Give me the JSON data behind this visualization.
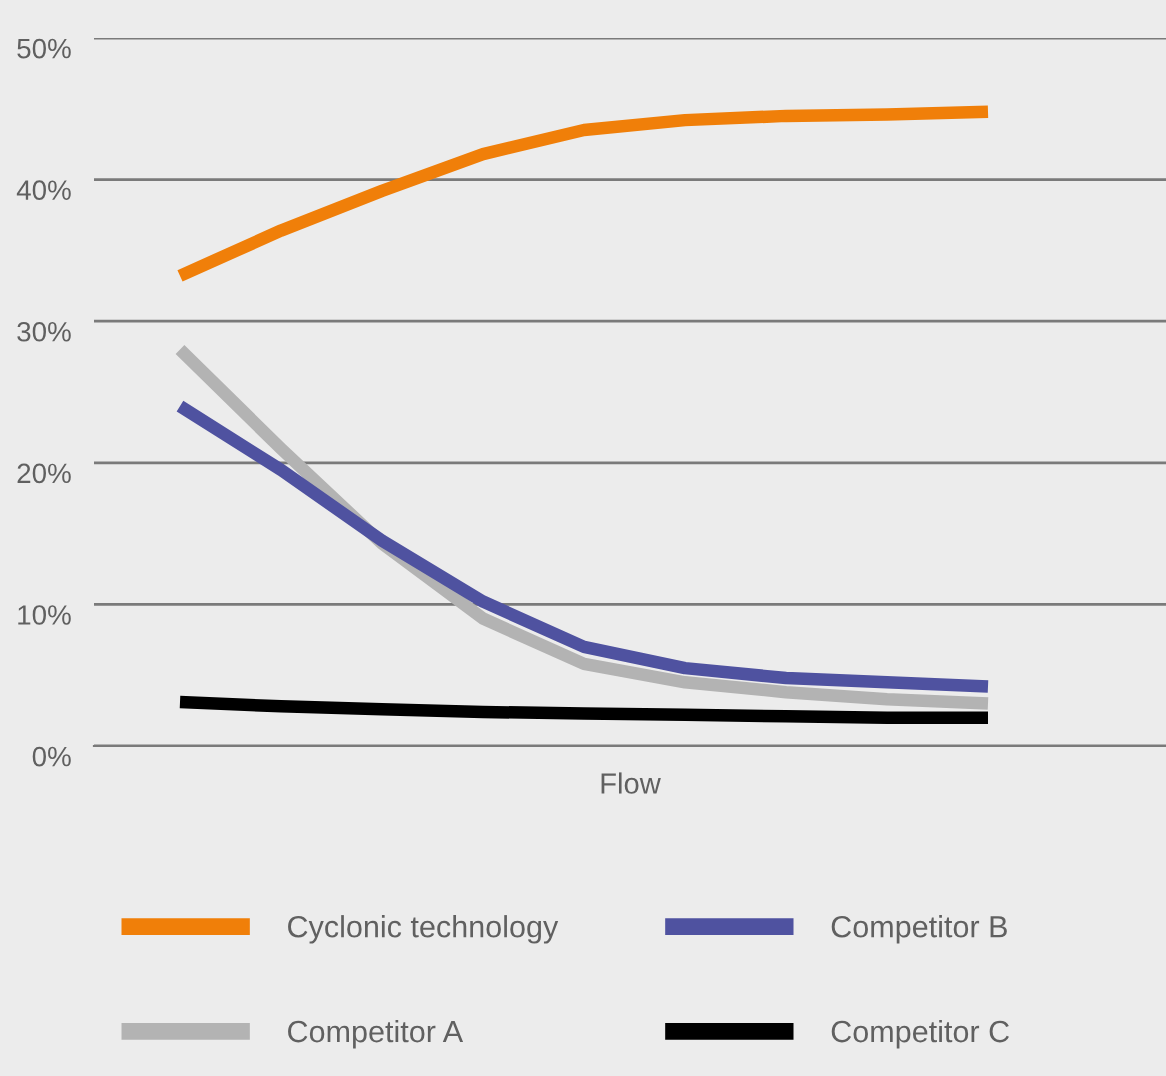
{
  "chart_data": {
    "type": "line",
    "xlabel": "Flow",
    "categories": [
      null,
      null,
      null,
      null,
      null,
      null,
      null,
      null,
      null
    ],
    "series": [
      {
        "name": "Cyclonic technology",
        "color": "#f07f09",
        "values": [
          33.2,
          36.4,
          39.2,
          41.8,
          43.5,
          44.2,
          44.5,
          44.6,
          44.8
        ]
      },
      {
        "name": "Competitor A",
        "color": "#b3b3b3",
        "values": [
          28.0,
          21.0,
          14.3,
          9.0,
          5.8,
          4.5,
          3.8,
          3.3,
          3.0
        ]
      },
      {
        "name": "Competitor B",
        "color": "#4f52a0",
        "values": [
          24.0,
          19.5,
          14.5,
          10.2,
          7.0,
          5.5,
          4.8,
          4.5,
          4.2
        ]
      },
      {
        "name": "Competitor C",
        "color": "#000000",
        "values": [
          3.1,
          2.8,
          2.6,
          2.4,
          2.3,
          2.2,
          2.1,
          2.0,
          2.0
        ]
      }
    ],
    "ylim": [
      0,
      50
    ],
    "yticks": [
      {
        "value": 0,
        "label": "0%"
      },
      {
        "value": 10,
        "label": "10%"
      },
      {
        "value": 20,
        "label": "20%"
      },
      {
        "value": 30,
        "label": "30%"
      },
      {
        "value": 40,
        "label": "40%"
      },
      {
        "value": 50,
        "label": "50%"
      }
    ],
    "grid": "y",
    "legend": "bottom",
    "line_style": "solid",
    "marker": "none"
  }
}
